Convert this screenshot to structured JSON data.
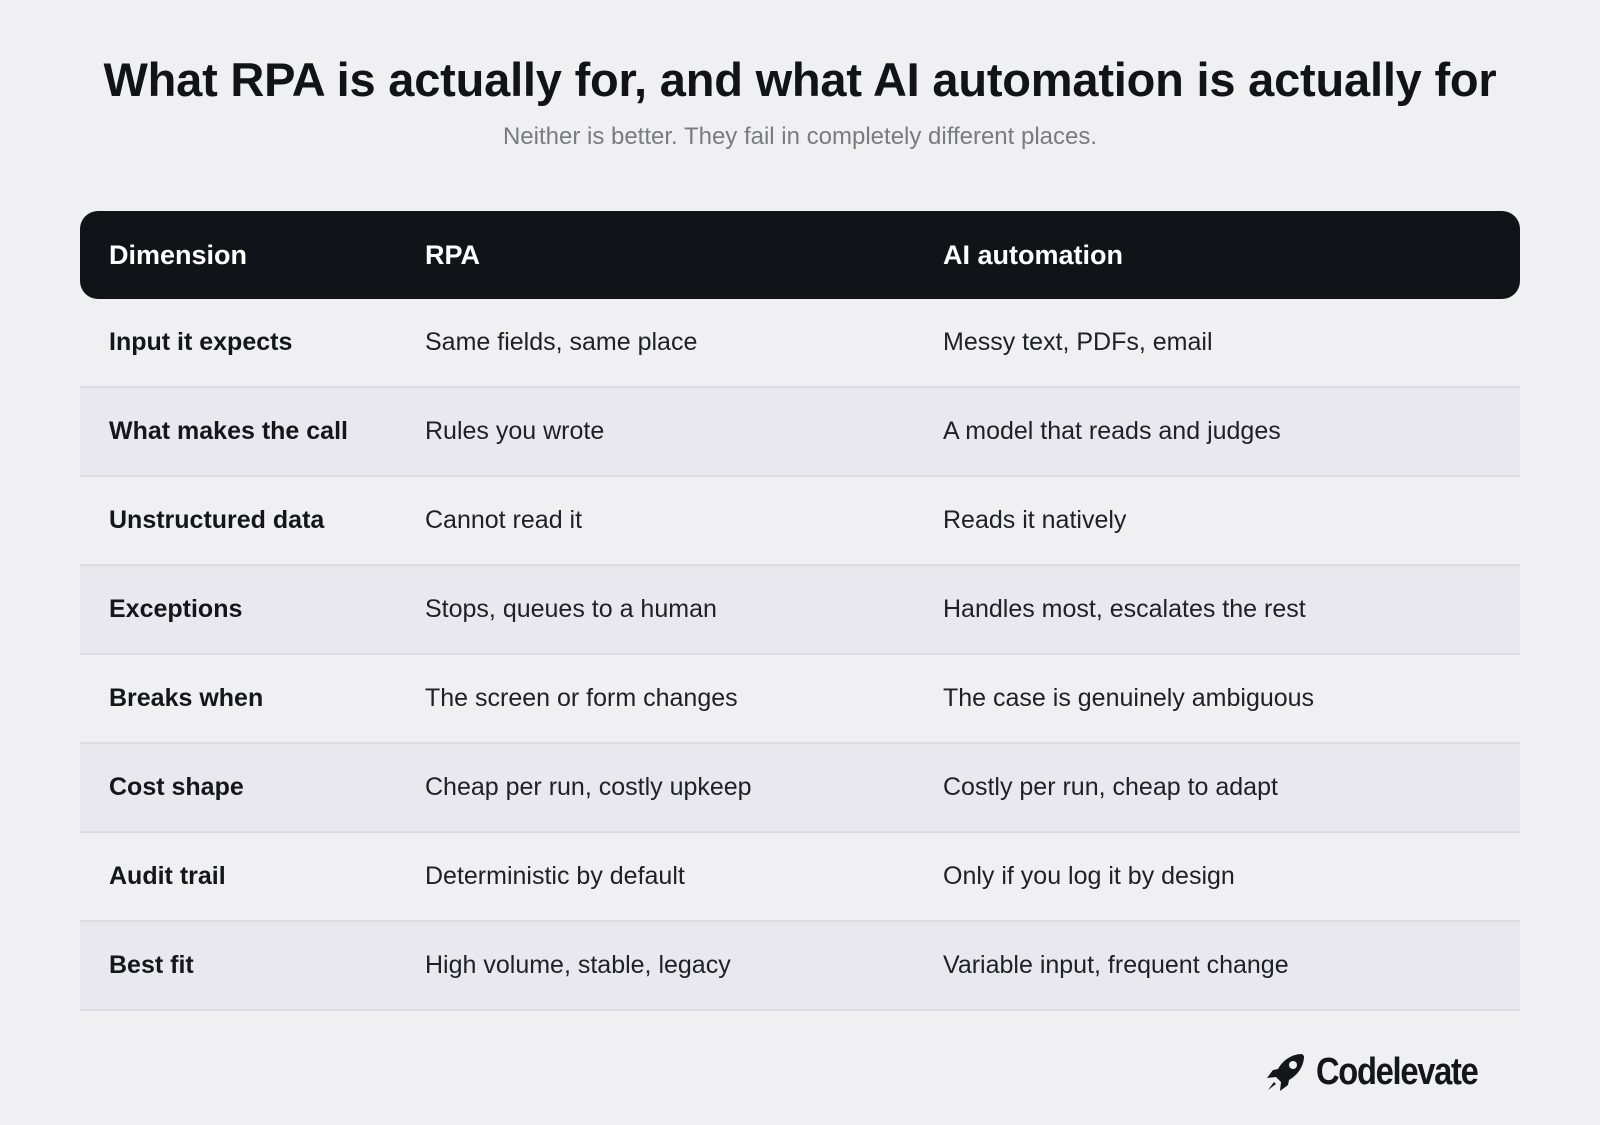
{
  "header": {
    "title": "What RPA is actually for, and what AI automation is actually for",
    "subtitle": "Neither is better. They fail in completely different places."
  },
  "table": {
    "columns": [
      "Dimension",
      "RPA",
      "AI automation"
    ],
    "rows": [
      [
        "Input it expects",
        "Same fields, same place",
        "Messy text, PDFs, email"
      ],
      [
        "What makes the call",
        "Rules you wrote",
        "A model that reads and judges"
      ],
      [
        "Unstructured data",
        "Cannot read it",
        "Reads it natively"
      ],
      [
        "Exceptions",
        "Stops, queues to a human",
        "Handles most, escalates the rest"
      ],
      [
        "Breaks when",
        "The screen or form changes",
        "The case is genuinely ambiguous"
      ],
      [
        "Cost shape",
        "Cheap per run, costly upkeep",
        "Costly per run, cheap to adapt"
      ],
      [
        "Audit trail",
        "Deterministic by default",
        "Only if you log it by design"
      ],
      [
        "Best fit",
        "High volume, stable, legacy",
        "Variable input, frequent change"
      ]
    ]
  },
  "brand": {
    "name": "Codelevate",
    "icon": "rocket-logo-icon"
  },
  "colors": {
    "background": "#f0f0f3",
    "header_bg": "#121318",
    "alt_row_bg": "#e8e8ee",
    "divider": "#dcdde2",
    "subtitle": "#7a7b80"
  }
}
